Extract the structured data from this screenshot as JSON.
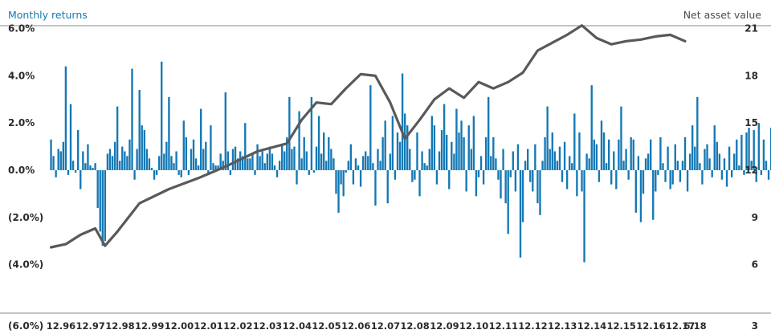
{
  "chart_data": {
    "type": "bar",
    "left_series_title": "Monthly returns",
    "right_series_title": "Net asset value",
    "left_ticks": [
      {
        "value": 6,
        "label": "6.0%"
      },
      {
        "value": 4,
        "label": "4.0%"
      },
      {
        "value": 2,
        "label": "2.0%"
      },
      {
        "value": 0,
        "label": "0.0%"
      },
      {
        "value": -2,
        "label": "(2.0%)"
      },
      {
        "value": -4,
        "label": "(4.0%)"
      },
      {
        "value": -6,
        "label": "(6.0%)"
      }
    ],
    "right_ticks": [
      {
        "value": 21,
        "label": "21"
      },
      {
        "value": 18,
        "label": "18"
      },
      {
        "value": 15,
        "label": "15"
      },
      {
        "value": 12,
        "label": "12"
      },
      {
        "value": 9,
        "label": "9"
      },
      {
        "value": 6,
        "label": "6"
      },
      {
        "value": 3,
        "label": "3"
      }
    ],
    "left_ylim": [
      -6,
      6
    ],
    "right_ylim": [
      3,
      21
    ],
    "x_start_month": 12,
    "x_start_year": 1996,
    "x_labels": [
      "12.96",
      "12.97",
      "12.98",
      "12.99",
      "12.00",
      "12.01",
      "12.02",
      "12.03",
      "12.04",
      "12.05",
      "12.06",
      "12.07",
      "12.08",
      "12.09",
      "12.10",
      "12.11",
      "12.12",
      "12.13",
      "12.14",
      "12.15",
      "12.16",
      "12.17",
      "6.18"
    ],
    "bar_color": "#1478b4",
    "line_color": "#595959",
    "grid": false,
    "monthly_returns": [
      1.3,
      0.6,
      -0.3,
      0.9,
      0.8,
      1.2,
      4.4,
      -0.2,
      2.8,
      0.4,
      -0.1,
      1.7,
      -0.8,
      0.8,
      0.3,
      1.1,
      0.2,
      0.1,
      0.3,
      -1.6,
      -2.6,
      -3.2,
      -3.0,
      0.7,
      0.9,
      0.6,
      1.2,
      2.7,
      0.4,
      1.0,
      0.8,
      0.6,
      1.3,
      4.3,
      -0.4,
      0.9,
      3.4,
      1.9,
      1.7,
      0.9,
      0.5,
      0.1,
      -0.4,
      -0.2,
      0.6,
      4.6,
      0.7,
      1.2,
      3.1,
      0.6,
      0.3,
      0.8,
      -0.2,
      -0.3,
      2.1,
      1.4,
      -0.2,
      0.9,
      1.3,
      0.5,
      0.2,
      2.6,
      0.9,
      1.2,
      -0.2,
      1.9,
      0.3,
      0.2,
      0.2,
      0.7,
      0.4,
      3.3,
      0.8,
      -0.2,
      0.9,
      1.0,
      0.5,
      0.8,
      0.6,
      2.0,
      0.5,
      0.5,
      0.7,
      -0.2,
      1.1,
      0.6,
      0.8,
      0.3,
      0.7,
      1.0,
      0.7,
      0.2,
      -0.3,
      0.4,
      1.1,
      0.8,
      1.4,
      3.1,
      0.9,
      1.0,
      -0.6,
      2.5,
      0.5,
      1.4,
      0.8,
      -0.2,
      3.1,
      -0.1,
      1.0,
      2.3,
      0.7,
      1.6,
      0.4,
      1.4,
      0.9,
      0.5,
      -1.0,
      -1.8,
      -0.6,
      -1.1,
      -0.1,
      0.4,
      1.1,
      -0.6,
      0.5,
      0.2,
      -0.7,
      0.6,
      0.8,
      0.6,
      3.6,
      0.3,
      -1.5,
      0.9,
      0.4,
      1.4,
      2.1,
      -1.4,
      0.7,
      2.3,
      -0.4,
      1.6,
      1.2,
      4.1,
      2.4,
      1.9,
      0.9,
      -0.5,
      -0.4,
      1.6,
      -1.1,
      0.8,
      0.3,
      0.2,
      0.9,
      2.3,
      1.9,
      -0.6,
      0.8,
      1.7,
      2.8,
      1.5,
      -0.8,
      1.2,
      0.7,
      2.6,
      1.6,
      2.1,
      1.4,
      -0.9,
      1.9,
      0.9,
      2.3,
      -1.1,
      -0.3,
      0.6,
      -0.6,
      1.4,
      3.1,
      0.6,
      1.4,
      0.5,
      -0.4,
      -1.2,
      0.9,
      -1.4,
      -2.7,
      -0.3,
      0.8,
      -0.9,
      1.1,
      -3.7,
      -2.2,
      0.4,
      0.9,
      -0.5,
      -0.9,
      1.1,
      -1.4,
      -1.9,
      0.4,
      1.4,
      2.7,
      0.9,
      1.6,
      0.8,
      0.4,
      1.0,
      -0.5,
      1.2,
      -0.8,
      0.6,
      0.3,
      2.4,
      -1.1,
      1.6,
      -0.9,
      -3.9,
      0.7,
      0.5,
      3.6,
      1.3,
      1.1,
      -0.5,
      2.1,
      1.6,
      0.3,
      1.3,
      -0.6,
      0.8,
      -0.8,
      1.3,
      2.7,
      0.4,
      0.9,
      -0.4,
      1.4,
      1.3,
      -1.8,
      0.6,
      -2.2,
      -1.0,
      0.5,
      0.7,
      1.3,
      -2.1,
      -0.9,
      -0.2,
      1.4,
      0.3,
      -0.5,
      1.0,
      -0.8,
      -0.6,
      1.1,
      0.4,
      -0.5,
      0.4,
      1.4,
      -0.9,
      0.7,
      1.9,
      1.0,
      3.1,
      0.3,
      -0.6,
      0.9,
      1.1,
      0.5,
      -0.3,
      1.9,
      1.2,
      0.7,
      -0.4,
      0.5,
      -0.7,
      1.0,
      -0.3,
      0.7,
      1.3,
      0.2,
      1.5,
      -0.2,
      1.6,
      1.8,
      0.4,
      1.7,
      -0.5,
      2.0,
      -0.2,
      1.3,
      0.4,
      -0.4,
      1.8,
      0.7,
      1.4,
      -0.8,
      0.5,
      0.6,
      -1.1,
      0.1,
      0.4,
      -0.3,
      1.6,
      -0.6,
      -0.1,
      1.1,
      -1.8,
      -0.5,
      0.5,
      1.0,
      -0.9,
      1.3,
      0.3,
      -1.2,
      1.2,
      0.4,
      -1.5,
      1.1,
      0.6,
      -0.8,
      -0.4,
      0.9,
      -0.1,
      0.3,
      0.7,
      0.2,
      -0.5,
      1.0,
      -0.7,
      0.4,
      0.5,
      0.2,
      0.2,
      -0.4,
      0.8,
      0.6,
      1.9,
      0.9,
      0.5,
      -0.2,
      -0.1,
      0.6,
      0.8,
      1.3,
      0.6,
      1.8,
      -1.0,
      -1.7,
      -0.6,
      0.3,
      -0.1,
      1.0,
      0.6,
      0.6
    ],
    "nav": [
      {
        "date": "1996-12",
        "value": 7.1
      },
      {
        "date": "1997-06",
        "value": 7.3
      },
      {
        "date": "1997-12",
        "value": 7.9
      },
      {
        "date": "1998-06",
        "value": 8.3
      },
      {
        "date": "1998-10",
        "value": 7.2
      },
      {
        "date": "1999-03",
        "value": 8.1
      },
      {
        "date": "1999-12",
        "value": 9.9
      },
      {
        "date": "2000-12",
        "value": 10.8
      },
      {
        "date": "2001-12",
        "value": 11.5
      },
      {
        "date": "2002-12",
        "value": 12.3
      },
      {
        "date": "2003-12",
        "value": 13.2
      },
      {
        "date": "2004-12",
        "value": 13.7
      },
      {
        "date": "2005-06",
        "value": 15.2
      },
      {
        "date": "2005-12",
        "value": 16.3
      },
      {
        "date": "2006-06",
        "value": 16.2
      },
      {
        "date": "2006-12",
        "value": 17.2
      },
      {
        "date": "2007-06",
        "value": 18.1
      },
      {
        "date": "2007-12",
        "value": 18.0
      },
      {
        "date": "2008-06",
        "value": 16.3
      },
      {
        "date": "2008-12",
        "value": 14.0
      },
      {
        "date": "2009-06",
        "value": 15.2
      },
      {
        "date": "2009-12",
        "value": 16.5
      },
      {
        "date": "2010-06",
        "value": 17.2
      },
      {
        "date": "2010-12",
        "value": 16.6
      },
      {
        "date": "2011-06",
        "value": 17.6
      },
      {
        "date": "2011-12",
        "value": 17.2
      },
      {
        "date": "2012-06",
        "value": 17.6
      },
      {
        "date": "2012-12",
        "value": 18.2
      },
      {
        "date": "2013-06",
        "value": 19.6
      },
      {
        "date": "2013-12",
        "value": 20.1
      },
      {
        "date": "2014-06",
        "value": 20.6
      },
      {
        "date": "2014-12",
        "value": 21.2
      },
      {
        "date": "2015-06",
        "value": 20.4
      },
      {
        "date": "2015-12",
        "value": 20.0
      },
      {
        "date": "2016-06",
        "value": 20.2
      },
      {
        "date": "2016-12",
        "value": 20.3
      },
      {
        "date": "2017-06",
        "value": 20.5
      },
      {
        "date": "2017-12",
        "value": 20.6
      },
      {
        "date": "2018-06",
        "value": 20.2
      }
    ]
  }
}
